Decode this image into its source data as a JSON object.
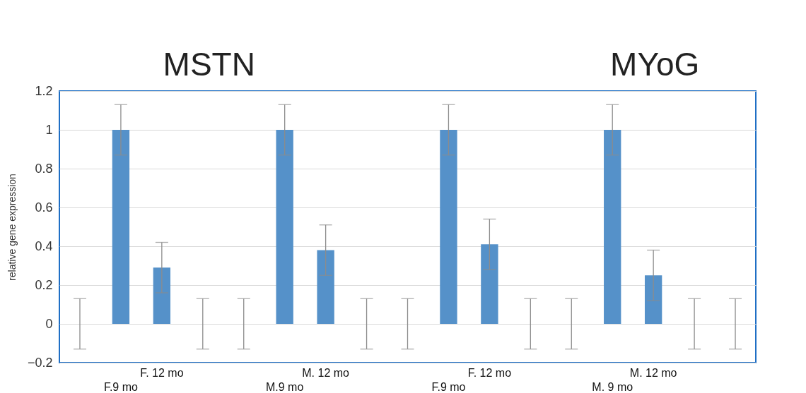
{
  "chart_data": {
    "type": "bar",
    "ylabel": "relative gene expression",
    "annotations": [
      "MSTN",
      "MYoG"
    ],
    "categories": [
      null,
      "F.9 mo",
      "F. 12 mo",
      null,
      null,
      "M.9 mo",
      "M. 12 mo",
      null,
      null,
      "F.9 mo",
      "F. 12 mo",
      null,
      null,
      "M. 9 mo",
      "M. 12 mo",
      null,
      null
    ],
    "values": [
      0,
      1,
      0.29,
      0,
      0,
      1,
      0.38,
      0,
      0,
      1,
      0.41,
      0,
      0,
      1,
      0.25,
      0,
      0
    ],
    "errors": [
      0.13,
      0.13,
      0.13,
      0.13,
      0.13,
      0.13,
      0.13,
      0.13,
      0.13,
      0.13,
      0.13,
      0.13,
      0.13,
      0.13,
      0.13,
      0.13,
      0.13
    ],
    "color": "#5591c9",
    "ylim": [
      -0.2,
      1.2
    ],
    "yticks": [
      -0.2,
      0,
      0.2,
      0.4,
      0.6,
      0.8,
      1,
      1.2
    ],
    "grid": "y"
  }
}
